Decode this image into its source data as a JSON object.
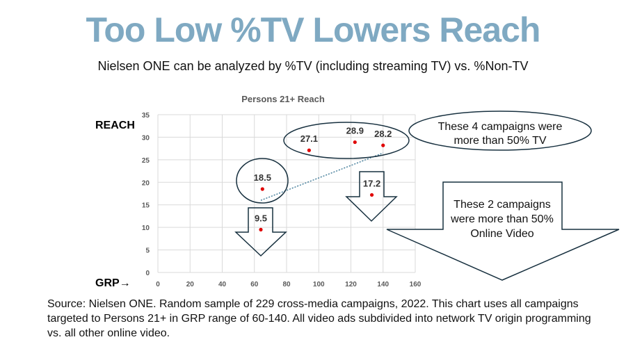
{
  "header": {
    "title": "Too Low %TV Lowers Reach",
    "subtitle": "Nielsen ONE can be analyzed by %TV (including streaming TV) vs. %Non-TV"
  },
  "source": "Source: Nielsen ONE. Random sample of 229 cross-media campaigns, 2022. This chart uses all campaigns targeted to Persons 21+ in GRP range of 60-140. All video ads subdivided into network TV origin programming vs. all other online video.",
  "annotations": {
    "tv_callout": [
      "These 4 campaigns were",
      "more than 50% TV"
    ],
    "online_callout": [
      "These 2 campaigns",
      "were more than 50%",
      "Online Video"
    ]
  },
  "chart_data": {
    "type": "scatter",
    "title": "Persons 21+ Reach",
    "xlabel": "GRP→",
    "ylabel": "REACH",
    "xlim": [
      0,
      160
    ],
    "ylim": [
      0,
      35
    ],
    "xticks": [
      0,
      20,
      40,
      60,
      80,
      100,
      120,
      140,
      160
    ],
    "yticks": [
      0,
      5,
      10,
      15,
      20,
      25,
      30,
      35
    ],
    "grid": true,
    "points": [
      {
        "x": 65,
        "y": 18.5,
        "label": "18.5"
      },
      {
        "x": 64,
        "y": 9.5,
        "label": "9.5"
      },
      {
        "x": 94,
        "y": 27.1,
        "label": "27.1"
      },
      {
        "x": 122.5,
        "y": 28.9,
        "label": "28.9"
      },
      {
        "x": 140,
        "y": 28.2,
        "label": "28.2"
      },
      {
        "x": 133,
        "y": 17.2,
        "label": "17.2"
      }
    ],
    "trendline": {
      "x": [
        64,
        140
      ],
      "y": [
        16,
        26.5
      ]
    },
    "point_color": "#e00000"
  }
}
